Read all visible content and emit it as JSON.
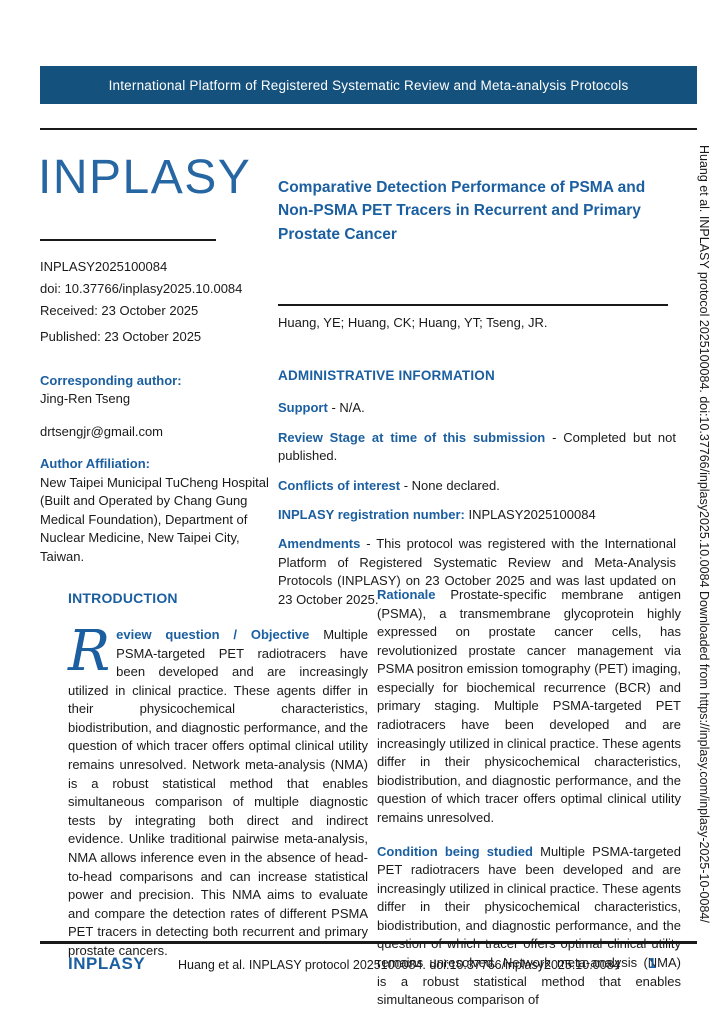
{
  "colors": {
    "banner_bg": "#15517D",
    "accent_blue": "#1B5FA0",
    "logo_blue": "#2566A3",
    "text": "#1a1a1a"
  },
  "banner": {
    "text": "International Platform of Registered Systematic Review and Meta-analysis Protocols"
  },
  "logo": {
    "text": "INPLASY"
  },
  "meta": {
    "registration": "INPLASY2025100084",
    "doi": "doi: 10.37766/inplasy2025.10.0084",
    "received": "Received: 23 October 2025",
    "published": "Published: 23 October 2025"
  },
  "title": "Comparative Detection Performance of PSMA and Non-PSMA PET Tracers in Recurrent and Primary Prostate Cancer",
  "authors": "Huang, YE; Huang, CK; Huang, YT; Tseng, JR.",
  "left_info": {
    "corresponding_label": "Corresponding author:",
    "corresponding_name": "Jing-Ren Tseng",
    "email": "drtsengjr@gmail.com",
    "affiliation_label": "Author Affiliation:",
    "affiliation": "New Taipei Municipal TuCheng Hospital (Built and Operated by Chang Gung Medical Foundation), Department of Nuclear Medicine, New Taipei City, Taiwan."
  },
  "admin": {
    "heading": "ADMINISTRATIVE INFORMATION",
    "items": [
      {
        "label": "Support",
        "text": "-  N/A."
      },
      {
        "label": "Review Stage at time of this submission",
        "text": "- Completed but not published."
      },
      {
        "label": "Conflicts of interest",
        "text": "- None declared."
      },
      {
        "label": "INPLASY registration number:",
        "text": "INPLASY2025100084"
      },
      {
        "label": "Amendments",
        "text": "- This protocol was registered with the International Platform of Registered Systematic Review and Meta-Analysis Protocols (INPLASY) on 23 October 2025 and was last updated on 23 October 2025."
      }
    ]
  },
  "intro": {
    "heading": "INTRODUCTION",
    "dropcap": "R",
    "lead": "eview question / Objective",
    "text": "Multiple PSMA-targeted PET radiotracers have been developed and are increasingly utilized in clinical practice. These agents differ in their physicochemical characteristics, biodistribution, and diagnostic performance, and the question of which tracer offers optimal clinical utility remains unresolved. Network meta-analysis (NMA) is a robust statistical method that enables simultaneous comparison of multiple diagnostic tests by integrating both direct and indirect evidence. Unlike traditional pairwise meta-analysis, NMA allows inference even in the absence of head-to-head comparisons and can increase statistical power and precision. This NMA aims to evaluate and compare the detection rates of different PSMA PET tracers in detecting both recurrent and primary prostate cancers."
  },
  "rationale": {
    "label": "Rationale",
    "text": "Prostate-specific membrane antigen (PSMA), a transmembrane glycoprotein highly expressed on prostate cancer cells, has revolutionized prostate cancer management via PSMA positron emission tomography (PET) imaging, especially for biochemical recurrence (BCR) and primary staging. Multiple PSMA-targeted PET radiotracers have been developed and are increasingly utilized in clinical practice. These agents differ in their physicochemical characteristics, biodistribution, and diagnostic performance, and the question of which tracer offers optimal clinical utility remains unresolved."
  },
  "condition": {
    "label": "Condition being studied",
    "text": "Multiple PSMA-targeted PET radiotracers have been developed and are increasingly utilized in clinical practice. These agents differ in their physicochemical characteristics, biodistribution, and diagnostic performance, and the question of which tracer offers optimal clinical utility remains unresolved. Network meta-analysis (NMA) is a robust statistical method that enables simultaneous comparison of"
  },
  "footer": {
    "brand": "INPLASY",
    "citation": "Huang et al. INPLASY protocol 2025100084. doi:10.37766/inplasy2025.10.0084",
    "page": "1"
  },
  "sidebar": {
    "text": "Huang et al. INPLASY protocol 2025100084. doi:10.37766/inplasy2025.10.0084 Downloaded from https://inplasy.com/inplasy-2025-10-0084/"
  }
}
